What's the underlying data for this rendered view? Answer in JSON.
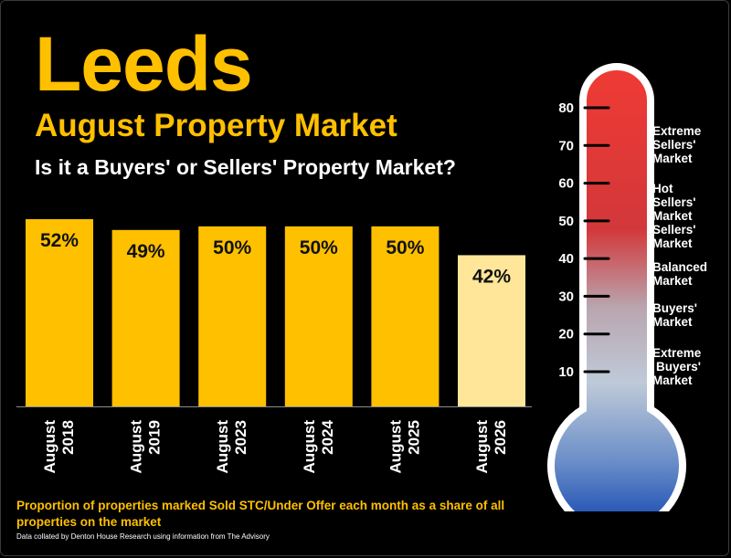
{
  "header": {
    "title": "Leeds",
    "subtitle": "August Property Market",
    "question": "Is it a Buyers' or Sellers' Property Market?"
  },
  "colors": {
    "accent": "#FFC000",
    "bar": "#FFC000",
    "bar_highlight": "#FFE699",
    "background": "#000000"
  },
  "chart_data": [
    {
      "type": "bar",
      "categories": [
        "August 2018",
        "August 2019",
        "August 2023",
        "August 2024",
        "August 2025",
        "August 2026"
      ],
      "values": [
        52,
        49,
        50,
        50,
        50,
        42
      ],
      "data_labels": [
        "52%",
        "49%",
        "50%",
        "50%",
        "50%",
        "42%"
      ],
      "highlight_index": 5,
      "ylim": [
        0,
        52
      ],
      "grid": false
    },
    {
      "type": "gauge",
      "ticks": [
        10,
        20,
        30,
        40,
        50,
        60,
        70,
        80
      ],
      "ylim": [
        0,
        80
      ],
      "zones": [
        {
          "label": "Extreme Sellers' Market",
          "lines": [
            "Extreme",
            "Sellers'",
            "Market"
          ]
        },
        {
          "label": "Hot Sellers' Market",
          "lines": [
            "Hot",
            "Sellers'",
            "Market"
          ]
        },
        {
          "label": "Sellers' Market",
          "lines": [
            "Sellers'",
            "Market"
          ]
        },
        {
          "label": "Balanced Market",
          "lines": [
            "Balanced",
            "Market"
          ]
        },
        {
          "label": "Buyers' Market",
          "lines": [
            "Buyers'",
            "Market"
          ]
        },
        {
          "label": "Extreme Buyers' Market",
          "lines": [
            "Extreme",
            "Buyers'",
            "Market"
          ]
        }
      ]
    }
  ],
  "footer": {
    "note": "Proportion of properties marked Sold STC/Under Offer each month as a share of all properties on the market",
    "source": "Data collated by Denton House Research using information from The Advisory"
  }
}
